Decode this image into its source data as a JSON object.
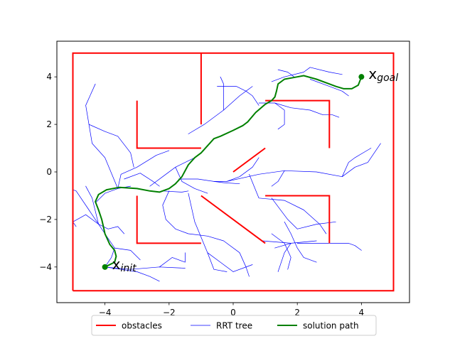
{
  "chart_data": {
    "type": "line",
    "title": "",
    "xlabel": "",
    "ylabel": "",
    "xlim": [
      -5.5,
      5.5
    ],
    "ylim": [
      -5.5,
      5.5
    ],
    "x_ticks": [
      -4,
      -2,
      0,
      2,
      4
    ],
    "y_ticks": [
      -4,
      -2,
      0,
      2,
      4
    ],
    "x_tick_labels": [
      "−4",
      "−2",
      "0",
      "2",
      "4"
    ],
    "y_tick_labels": [
      "−4",
      "−2",
      "0",
      "2",
      "4"
    ],
    "grid": false,
    "colors": {
      "obstacles": "#ff0000",
      "tree": "#0000ff",
      "path": "#008000"
    },
    "obstacles": [
      [
        [
          -5,
          -5
        ],
        [
          5,
          -5
        ],
        [
          5,
          5
        ],
        [
          -5,
          5
        ],
        [
          -5,
          -5
        ]
      ],
      [
        [
          -1,
          5
        ],
        [
          -1,
          2
        ]
      ],
      [
        [
          -3,
          3
        ],
        [
          -3,
          1
        ],
        [
          -1,
          1
        ]
      ],
      [
        [
          -3,
          -1
        ],
        [
          -3,
          -3
        ],
        [
          -1,
          -3
        ]
      ],
      [
        [
          -1,
          -1
        ],
        [
          1,
          -3
        ]
      ],
      [
        [
          0,
          0
        ],
        [
          1,
          1
        ]
      ],
      [
        [
          1,
          3
        ],
        [
          3,
          3
        ],
        [
          3,
          1
        ]
      ],
      [
        [
          1,
          -1
        ],
        [
          3,
          -1
        ],
        [
          3,
          -3
        ]
      ]
    ],
    "tree": [
      [
        [
          -4.0,
          -4.0
        ],
        [
          -3.8,
          -3.6
        ],
        [
          -3.7,
          -3.2
        ],
        [
          -3.9,
          -2.8
        ],
        [
          -4.2,
          -2.2
        ],
        [
          -4.5,
          -1.6
        ],
        [
          -4.9,
          -0.8
        ],
        [
          -5.0,
          -0.75
        ]
      ],
      [
        [
          -4.2,
          -2.2
        ],
        [
          -4.4,
          -1.1
        ],
        [
          -4.6,
          -0.6
        ]
      ],
      [
        [
          -4.2,
          -2.2
        ],
        [
          -4.6,
          -1.8
        ],
        [
          -5.0,
          -2.1
        ],
        [
          -4.9,
          -2.3
        ]
      ],
      [
        [
          -4.2,
          -2.2
        ],
        [
          -3.9,
          -2.4
        ],
        [
          -3.6,
          -2.3
        ],
        [
          -3.4,
          -2.6
        ]
      ],
      [
        [
          -3.7,
          -3.2
        ],
        [
          -3.2,
          -3.3
        ],
        [
          -2.9,
          -3.7
        ]
      ],
      [
        [
          -4.0,
          -4.0
        ],
        [
          -3.2,
          -4.1
        ],
        [
          -2.3,
          -4.0
        ],
        [
          -1.5,
          -4.05
        ]
      ],
      [
        [
          -4.0,
          -4.0
        ],
        [
          -3.0,
          -4.2
        ],
        [
          -2.6,
          -4.4
        ],
        [
          -2.3,
          -4.6
        ]
      ],
      [
        [
          -2.3,
          -4.0
        ],
        [
          -1.9,
          -3.6
        ],
        [
          -1.5,
          -3.8
        ],
        [
          -1.5,
          -3.4
        ]
      ],
      [
        [
          -4.3,
          -1.3
        ],
        [
          -4.0,
          -0.9
        ],
        [
          -3.6,
          -0.7
        ],
        [
          -3.2,
          -0.6
        ]
      ],
      [
        [
          -3.6,
          -0.7
        ],
        [
          -3.5,
          -0.1
        ],
        [
          -3.0,
          0.2
        ],
        [
          -2.4,
          0.7
        ],
        [
          -2.0,
          0.9
        ]
      ],
      [
        [
          -3.6,
          -0.7
        ],
        [
          -4.0,
          0.6
        ],
        [
          -4.4,
          1.2
        ],
        [
          -4.5,
          2.0
        ],
        [
          -4.6,
          2.8
        ],
        [
          -4.3,
          3.7
        ]
      ],
      [
        [
          -4.5,
          2.0
        ],
        [
          -4.0,
          1.7
        ],
        [
          -3.6,
          1.5
        ],
        [
          -3.2,
          0.8
        ],
        [
          -3.1,
          0.2
        ]
      ],
      [
        [
          -3.4,
          -0.3
        ],
        [
          -2.9,
          -0.05
        ],
        [
          -2.5,
          -0.4
        ],
        [
          -2.3,
          -0.6
        ]
      ],
      [
        [
          -2.6,
          -0.6
        ],
        [
          -2.2,
          -0.2
        ],
        [
          -1.8,
          0.2
        ],
        [
          -1.2,
          0.6
        ]
      ],
      [
        [
          -1.8,
          0.2
        ],
        [
          -1.6,
          -0.4
        ],
        [
          -1.2,
          -0.7
        ],
        [
          -0.8,
          -0.9
        ]
      ],
      [
        [
          -2.0,
          -0.8
        ],
        [
          -2.2,
          -1.4
        ],
        [
          -2.1,
          -2.0
        ],
        [
          -1.8,
          -2.4
        ],
        [
          -1.4,
          -2.6
        ],
        [
          -0.8,
          -2.7
        ],
        [
          -0.3,
          -2.9
        ],
        [
          0.2,
          -3.4
        ],
        [
          0.4,
          -4.0
        ],
        [
          0.5,
          -4.4
        ]
      ],
      [
        [
          -2.2,
          -0.8
        ],
        [
          -1.6,
          -0.85
        ],
        [
          -1.4,
          -0.8
        ]
      ],
      [
        [
          -1.4,
          -0.9
        ],
        [
          -1.2,
          -2.1
        ],
        [
          -0.8,
          -3.4
        ],
        [
          -0.4,
          -3.8
        ],
        [
          0.0,
          -4.2
        ],
        [
          0.6,
          -3.9
        ]
      ],
      [
        [
          -0.8,
          -3.4
        ],
        [
          -0.6,
          -4.1
        ],
        [
          -0.2,
          -4.2
        ]
      ],
      [
        [
          -1.7,
          -0.3
        ],
        [
          -1.1,
          -0.3
        ],
        [
          -0.6,
          -0.4
        ],
        [
          -0.2,
          -0.4
        ],
        [
          0.2,
          -0.2
        ],
        [
          0.6,
          0.2
        ],
        [
          0.8,
          0.6
        ]
      ],
      [
        [
          -0.6,
          -0.4
        ],
        [
          -0.3,
          -0.45
        ],
        [
          0.2,
          -0.5
        ]
      ],
      [
        [
          -0.2,
          -0.4
        ],
        [
          0.8,
          -0.1
        ],
        [
          1.6,
          0.05
        ],
        [
          2.6,
          0.0
        ],
        [
          3.4,
          -0.2
        ],
        [
          3.8,
          0.2
        ],
        [
          4.2,
          0.4
        ],
        [
          4.6,
          1.2
        ]
      ],
      [
        [
          3.4,
          -0.2
        ],
        [
          3.6,
          0.4
        ],
        [
          3.8,
          0.6
        ],
        [
          4.3,
          1.0
        ]
      ],
      [
        [
          1.6,
          0.05
        ],
        [
          1.4,
          -0.4
        ],
        [
          1.2,
          -0.6
        ]
      ],
      [
        [
          0.5,
          -0.1
        ],
        [
          0.8,
          -1.1
        ],
        [
          1.6,
          -1.2
        ],
        [
          2.2,
          -1.6
        ],
        [
          2.7,
          -2.2
        ],
        [
          2.9,
          -2.6
        ]
      ],
      [
        [
          1.2,
          -1.1
        ],
        [
          1.7,
          -2.0
        ],
        [
          2.0,
          -2.4
        ],
        [
          2.6,
          -2.2
        ],
        [
          3.2,
          -2.1
        ]
      ],
      [
        [
          1.6,
          -2.1
        ],
        [
          1.8,
          -2.6
        ],
        [
          2.0,
          -3.2
        ],
        [
          2.2,
          -3.6
        ],
        [
          2.6,
          -3.8
        ]
      ],
      [
        [
          1.2,
          -2.6
        ],
        [
          1.6,
          -3.0
        ],
        [
          1.8,
          -3.6
        ],
        [
          1.7,
          -4.1
        ]
      ],
      [
        [
          0.9,
          -2.9
        ],
        [
          1.8,
          -3.0
        ],
        [
          2.6,
          -2.9
        ]
      ],
      [
        [
          2.0,
          -3.0
        ],
        [
          3.0,
          -3.0
        ],
        [
          3.6,
          -3.0
        ],
        [
          3.8,
          -3.1
        ],
        [
          4.0,
          -3.3
        ]
      ],
      [
        [
          1.3,
          -3.2
        ],
        [
          1.8,
          -3.0
        ],
        [
          1.6,
          -3.4
        ],
        [
          1.4,
          -4.2
        ]
      ],
      [
        [
          -1.4,
          1.6
        ],
        [
          -0.9,
          2.0
        ],
        [
          -0.3,
          2.6
        ],
        [
          0.2,
          3.2
        ],
        [
          0.6,
          3.6
        ]
      ],
      [
        [
          -0.3,
          2.6
        ],
        [
          -0.3,
          3.7
        ],
        [
          -0.4,
          4.0
        ]
      ],
      [
        [
          -0.5,
          3.6
        ],
        [
          0.1,
          3.6
        ],
        [
          0.4,
          3.4
        ],
        [
          0.6,
          3.2
        ],
        [
          0.8,
          2.8
        ]
      ],
      [
        [
          0.8,
          2.9
        ],
        [
          1.3,
          2.9
        ],
        [
          1.6,
          2.6
        ],
        [
          1.6,
          2.0
        ],
        [
          1.4,
          1.8
        ]
      ],
      [
        [
          1.3,
          2.9
        ],
        [
          1.8,
          2.7
        ],
        [
          2.4,
          2.6
        ],
        [
          2.8,
          2.4
        ],
        [
          3.1,
          2.4
        ],
        [
          3.3,
          2.3
        ]
      ],
      [
        [
          1.2,
          3.8
        ],
        [
          1.6,
          4.0
        ],
        [
          2.2,
          4.2
        ],
        [
          2.4,
          4.4
        ],
        [
          3.0,
          4.2
        ],
        [
          3.4,
          4.1
        ]
      ],
      [
        [
          2.4,
          3.9
        ],
        [
          3.0,
          3.6
        ],
        [
          3.4,
          3.4
        ],
        [
          3.6,
          3.2
        ]
      ],
      [
        [
          1.9,
          4.0
        ],
        [
          1.7,
          4.2
        ],
        [
          1.4,
          4.3
        ]
      ]
    ],
    "solution_path": [
      [
        -4.0,
        -4.0
      ],
      [
        -3.7,
        -3.8
      ],
      [
        -3.65,
        -3.55
      ],
      [
        -3.7,
        -3.3
      ],
      [
        -3.85,
        -3.05
      ],
      [
        -4.0,
        -2.6
      ],
      [
        -4.05,
        -2.3
      ],
      [
        -4.1,
        -2.0
      ],
      [
        -4.2,
        -1.6
      ],
      [
        -4.3,
        -1.25
      ],
      [
        -4.2,
        -0.95
      ],
      [
        -3.95,
        -0.75
      ],
      [
        -3.55,
        -0.65
      ],
      [
        -3.0,
        -0.7
      ],
      [
        -2.6,
        -0.8
      ],
      [
        -2.3,
        -0.85
      ],
      [
        -2.0,
        -0.7
      ],
      [
        -1.8,
        -0.5
      ],
      [
        -1.6,
        -0.2
      ],
      [
        -1.4,
        0.3
      ],
      [
        -1.2,
        0.6
      ],
      [
        -1.0,
        0.8
      ],
      [
        -0.8,
        1.1
      ],
      [
        -0.6,
        1.4
      ],
      [
        -0.4,
        1.5
      ],
      [
        0.0,
        1.75
      ],
      [
        0.3,
        1.95
      ],
      [
        0.45,
        2.1
      ],
      [
        0.7,
        2.5
      ],
      [
        1.0,
        2.85
      ],
      [
        1.2,
        3.0
      ],
      [
        1.3,
        3.15
      ],
      [
        1.35,
        3.4
      ],
      [
        1.4,
        3.7
      ],
      [
        1.6,
        3.9
      ],
      [
        2.0,
        4.0
      ],
      [
        2.2,
        4.05
      ],
      [
        2.6,
        3.9
      ],
      [
        3.0,
        3.7
      ],
      [
        3.2,
        3.6
      ],
      [
        3.45,
        3.5
      ],
      [
        3.7,
        3.5
      ],
      [
        3.9,
        3.65
      ],
      [
        4.0,
        4.0
      ]
    ],
    "points": {
      "start": {
        "x": -4,
        "y": -4,
        "label": "x",
        "sub": "init"
      },
      "goal": {
        "x": 4,
        "y": 4,
        "label": "x",
        "sub": "goal"
      }
    },
    "legend": {
      "placement": "bottom-center",
      "entries": [
        {
          "label": "obstacles",
          "color": "#ff0000"
        },
        {
          "label": "RRT tree",
          "color": "#0000ff"
        },
        {
          "label": "solution path",
          "color": "#008000"
        }
      ]
    }
  }
}
